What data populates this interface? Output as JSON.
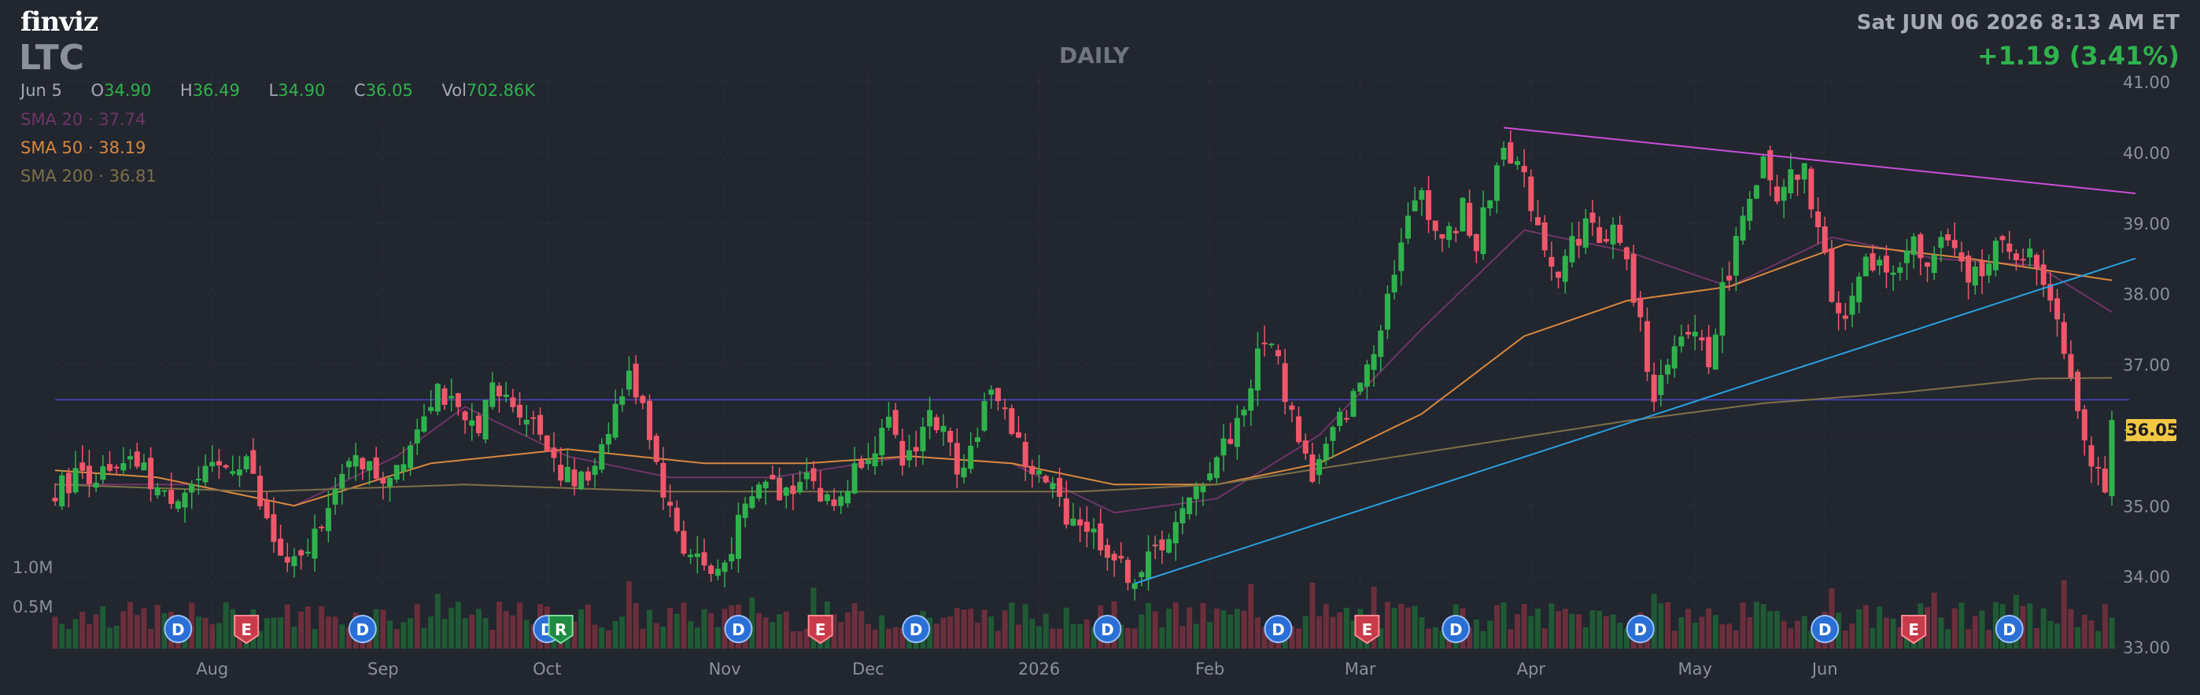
{
  "header": {
    "logo": "finviz",
    "ticker": "LTC",
    "timeframe": "DAILY",
    "datetime": "Sat JUN 06 2026 8:13 AM ET",
    "change": "+1.19 (3.41%)"
  },
  "ohlc": {
    "date": "Jun 5",
    "open_label": "O",
    "open": "34.90",
    "high_label": "H",
    "high": "36.49",
    "low_label": "L",
    "low": "34.90",
    "close_label": "C",
    "close": "36.05",
    "vol_label": "Vol",
    "vol": "702.86K"
  },
  "sma": [
    {
      "label": "SMA 20",
      "value": "37.74",
      "color": "#6e3566"
    },
    {
      "label": "SMA 50",
      "value": "38.19",
      "color": "#d8883d"
    },
    {
      "label": "SMA 200",
      "value": "36.81",
      "color": "#7d7048"
    }
  ],
  "current_price": "36.05",
  "volume_labels": [
    "1.0M",
    "0.5M"
  ],
  "colors": {
    "up": "#2fb24c",
    "down": "#f0576a",
    "background": "#22262f",
    "sma20": "#6e3566",
    "sma50": "#d8883d",
    "sma200": "#7d7048",
    "support": "#2a9fe0",
    "resistance": "#c94fd6",
    "hline": "#4a45c2",
    "price_marker": "#f2c744"
  },
  "chart_data": {
    "type": "candlestick",
    "title": "LTC",
    "timeframe": "DAILY",
    "ylim": [
      33.0,
      41.0
    ],
    "y_ticks": [
      "41.00",
      "40.00",
      "39.00",
      "38.00",
      "37.00",
      "36.00",
      "35.00",
      "34.00",
      "33.00"
    ],
    "x_ticks": [
      "Aug",
      "Sep",
      "Oct",
      "Nov",
      "Dec",
      "2026",
      "Feb",
      "Mar",
      "Apr",
      "May",
      "Jun"
    ],
    "price_path": [
      [
        0,
        35.2
      ],
      [
        4,
        35.5
      ],
      [
        8,
        35.4
      ],
      [
        12,
        35.6
      ],
      [
        16,
        35.1
      ],
      [
        20,
        35.3
      ],
      [
        24,
        35.5
      ],
      [
        28,
        35.7
      ],
      [
        30,
        35.0
      ],
      [
        32,
        34.5
      ],
      [
        34,
        34.1
      ],
      [
        36,
        34.2
      ],
      [
        38,
        34.6
      ],
      [
        40,
        35.1
      ],
      [
        42,
        35.3
      ],
      [
        44,
        35.8
      ],
      [
        46,
        35.5
      ],
      [
        48,
        35.4
      ],
      [
        50,
        35.6
      ],
      [
        52,
        35.9
      ],
      [
        54,
        36.4
      ],
      [
        56,
        36.7
      ],
      [
        58,
        36.4
      ],
      [
        60,
        36.1
      ],
      [
        62,
        36.2
      ],
      [
        64,
        36.6
      ],
      [
        66,
        36.5
      ],
      [
        68,
        36.4
      ],
      [
        70,
        36.2
      ],
      [
        72,
        35.9
      ],
      [
        74,
        35.5
      ],
      [
        76,
        35.3
      ],
      [
        78,
        35.4
      ],
      [
        80,
        35.9
      ],
      [
        82,
        36.4
      ],
      [
        84,
        36.8
      ],
      [
        86,
        36.5
      ],
      [
        88,
        35.6
      ],
      [
        90,
        34.9
      ],
      [
        92,
        34.4
      ],
      [
        94,
        34.3
      ],
      [
        96,
        34.0
      ],
      [
        98,
        34.2
      ],
      [
        100,
        34.7
      ],
      [
        102,
        35.1
      ],
      [
        104,
        35.4
      ],
      [
        106,
        35.2
      ],
      [
        108,
        35.3
      ],
      [
        110,
        35.6
      ],
      [
        112,
        35.1
      ],
      [
        114,
        35.0
      ],
      [
        116,
        35.3
      ],
      [
        118,
        35.7
      ],
      [
        120,
        35.9
      ],
      [
        122,
        36.1
      ],
      [
        124,
        35.6
      ],
      [
        126,
        35.9
      ],
      [
        128,
        36.3
      ],
      [
        130,
        36.0
      ],
      [
        132,
        35.6
      ],
      [
        134,
        35.8
      ],
      [
        136,
        36.4
      ],
      [
        138,
        36.6
      ],
      [
        140,
        36.1
      ],
      [
        142,
        35.6
      ],
      [
        144,
        35.4
      ],
      [
        146,
        35.2
      ],
      [
        148,
        34.9
      ],
      [
        150,
        34.8
      ],
      [
        152,
        34.6
      ],
      [
        154,
        34.4
      ],
      [
        156,
        34.1
      ],
      [
        158,
        34.0
      ],
      [
        160,
        34.2
      ],
      [
        162,
        34.5
      ],
      [
        164,
        34.7
      ],
      [
        166,
        35.0
      ],
      [
        168,
        35.4
      ],
      [
        170,
        35.7
      ],
      [
        172,
        36.0
      ],
      [
        174,
        36.4
      ],
      [
        176,
        37.1
      ],
      [
        178,
        37.4
      ],
      [
        180,
        36.6
      ],
      [
        182,
        36.0
      ],
      [
        184,
        35.4
      ],
      [
        186,
        35.8
      ],
      [
        188,
        36.2
      ],
      [
        190,
        36.5
      ],
      [
        192,
        37.0
      ],
      [
        194,
        37.6
      ],
      [
        196,
        38.4
      ],
      [
        198,
        39.0
      ],
      [
        200,
        39.5
      ],
      [
        202,
        38.9
      ],
      [
        204,
        38.8
      ],
      [
        206,
        39.2
      ],
      [
        208,
        38.7
      ],
      [
        210,
        39.4
      ],
      [
        212,
        40.2
      ],
      [
        214,
        39.8
      ],
      [
        216,
        39.3
      ],
      [
        218,
        38.7
      ],
      [
        220,
        38.3
      ],
      [
        222,
        38.7
      ],
      [
        224,
        39.0
      ],
      [
        226,
        38.8
      ],
      [
        228,
        38.9
      ],
      [
        230,
        38.4
      ],
      [
        232,
        37.5
      ],
      [
        234,
        36.6
      ],
      [
        236,
        36.9
      ],
      [
        238,
        37.3
      ],
      [
        240,
        37.5
      ],
      [
        242,
        37.1
      ],
      [
        244,
        38.0
      ],
      [
        246,
        38.7
      ],
      [
        248,
        39.5
      ],
      [
        250,
        39.8
      ],
      [
        252,
        39.2
      ],
      [
        254,
        39.6
      ],
      [
        256,
        39.7
      ],
      [
        258,
        38.9
      ],
      [
        260,
        38.0
      ],
      [
        262,
        37.7
      ],
      [
        264,
        38.2
      ],
      [
        266,
        38.5
      ],
      [
        268,
        38.3
      ],
      [
        270,
        38.5
      ],
      [
        272,
        38.7
      ],
      [
        274,
        38.3
      ],
      [
        276,
        38.8
      ],
      [
        278,
        38.5
      ],
      [
        280,
        38.2
      ],
      [
        282,
        38.4
      ],
      [
        284,
        38.7
      ],
      [
        286,
        38.5
      ],
      [
        288,
        38.6
      ],
      [
        290,
        38.4
      ],
      [
        292,
        38.0
      ],
      [
        294,
        37.3
      ],
      [
        296,
        36.4
      ],
      [
        298,
        35.7
      ],
      [
        300,
        35.3
      ],
      [
        301,
        36.05
      ]
    ],
    "series": [
      {
        "name": "SMA 20",
        "values": [
          [
            0,
            35.3
          ],
          [
            20,
            35.3
          ],
          [
            35,
            35.0
          ],
          [
            50,
            35.7
          ],
          [
            60,
            36.4
          ],
          [
            75,
            35.7
          ],
          [
            90,
            35.4
          ],
          [
            105,
            35.4
          ],
          [
            125,
            35.7
          ],
          [
            140,
            35.6
          ],
          [
            155,
            34.9
          ],
          [
            170,
            35.1
          ],
          [
            185,
            36.0
          ],
          [
            200,
            37.5
          ],
          [
            215,
            38.9
          ],
          [
            230,
            38.6
          ],
          [
            245,
            38.1
          ],
          [
            260,
            38.8
          ],
          [
            275,
            38.5
          ],
          [
            290,
            38.4
          ],
          [
            301,
            37.74
          ]
        ]
      },
      {
        "name": "SMA 50",
        "values": [
          [
            0,
            35.5
          ],
          [
            15,
            35.4
          ],
          [
            35,
            35.0
          ],
          [
            55,
            35.6
          ],
          [
            75,
            35.8
          ],
          [
            95,
            35.6
          ],
          [
            110,
            35.6
          ],
          [
            125,
            35.7
          ],
          [
            140,
            35.6
          ],
          [
            155,
            35.3
          ],
          [
            170,
            35.3
          ],
          [
            185,
            35.6
          ],
          [
            200,
            36.3
          ],
          [
            215,
            37.4
          ],
          [
            230,
            37.9
          ],
          [
            245,
            38.1
          ],
          [
            262,
            38.7
          ],
          [
            280,
            38.5
          ],
          [
            301,
            38.19
          ]
        ]
      },
      {
        "name": "SMA 200",
        "values": [
          [
            0,
            35.3
          ],
          [
            30,
            35.2
          ],
          [
            60,
            35.3
          ],
          [
            90,
            35.2
          ],
          [
            120,
            35.2
          ],
          [
            150,
            35.2
          ],
          [
            170,
            35.3
          ],
          [
            190,
            35.6
          ],
          [
            210,
            35.9
          ],
          [
            230,
            36.2
          ],
          [
            250,
            36.45
          ],
          [
            270,
            36.6
          ],
          [
            290,
            36.8
          ],
          [
            301,
            36.81
          ]
        ]
      }
    ],
    "trendlines": [
      {
        "type": "support",
        "from": [
          158,
          33.9
        ],
        "to": [
          301,
          38.5
        ]
      },
      {
        "type": "resistance",
        "from": [
          212,
          40.35
        ],
        "to": [
          301,
          39.42
        ]
      },
      {
        "type": "horizontal",
        "value": 36.5
      }
    ],
    "events": [
      {
        "type": "D",
        "at": 18
      },
      {
        "type": "E",
        "at": 28
      },
      {
        "type": "D",
        "at": 45
      },
      {
        "type": "D",
        "at": 72
      },
      {
        "type": "R",
        "at": 74
      },
      {
        "type": "D",
        "at": 100
      },
      {
        "type": "E",
        "at": 112
      },
      {
        "type": "D",
        "at": 126
      },
      {
        "type": "D",
        "at": 154
      },
      {
        "type": "D",
        "at": 179
      },
      {
        "type": "E",
        "at": 192
      },
      {
        "type": "D",
        "at": 205
      },
      {
        "type": "D",
        "at": 232
      },
      {
        "type": "D",
        "at": 259
      },
      {
        "type": "E",
        "at": 272
      },
      {
        "type": "D",
        "at": 286
      }
    ]
  }
}
